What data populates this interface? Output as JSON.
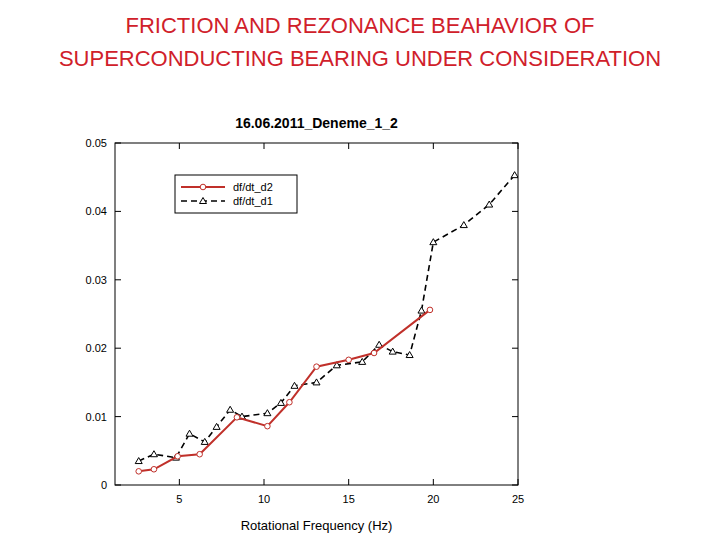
{
  "page_title": [
    "FRICTION AND REZONANCE BEAHAVIOR OF",
    "SUPERCONDUCTING BEARING UNDER CONSIDERATION"
  ],
  "chart_data": {
    "type": "line",
    "title": "16.06.2011_Deneme_1_2",
    "x_label": "Rotational Frequency (Hz)",
    "xlim": [
      1.2,
      25
    ],
    "xticks": [
      5,
      10,
      15,
      20,
      25
    ],
    "ylim": [
      0,
      0.05
    ],
    "yticks": [
      0,
      0.01,
      0.02,
      0.03,
      0.04,
      0.05
    ],
    "grid": false,
    "legend": "upper left",
    "series": [
      {
        "name": "df/dt_d2",
        "color": "#c0302a",
        "marker": "circle",
        "line_style": "solid",
        "x": [
          2.6,
          3.5,
          4.9,
          6.2,
          8.4,
          10.2,
          11.5,
          13.1,
          15.0,
          16.5,
          19.8
        ],
        "values": [
          0.002,
          0.0023,
          0.0042,
          0.0045,
          0.0099,
          0.0086,
          0.0121,
          0.0173,
          0.0183,
          0.0193,
          0.0256
        ]
      },
      {
        "name": "df/dt_d1",
        "color": "#000000",
        "marker": "triangle",
        "line_style": "dashed",
        "x": [
          2.6,
          3.5,
          4.8,
          5.6,
          6.5,
          7.2,
          8.0,
          8.7,
          10.2,
          11.0,
          11.8,
          13.1,
          14.3,
          15.8,
          16.8,
          17.6,
          18.6,
          19.3,
          20.0,
          21.8,
          23.3,
          24.8
        ],
        "values": [
          0.0035,
          0.0045,
          0.004,
          0.0075,
          0.0063,
          0.0085,
          0.011,
          0.01,
          0.0105,
          0.012,
          0.0145,
          0.015,
          0.0175,
          0.018,
          0.0205,
          0.0195,
          0.019,
          0.0255,
          0.0355,
          0.038,
          0.041,
          0.0453
        ]
      }
    ]
  }
}
